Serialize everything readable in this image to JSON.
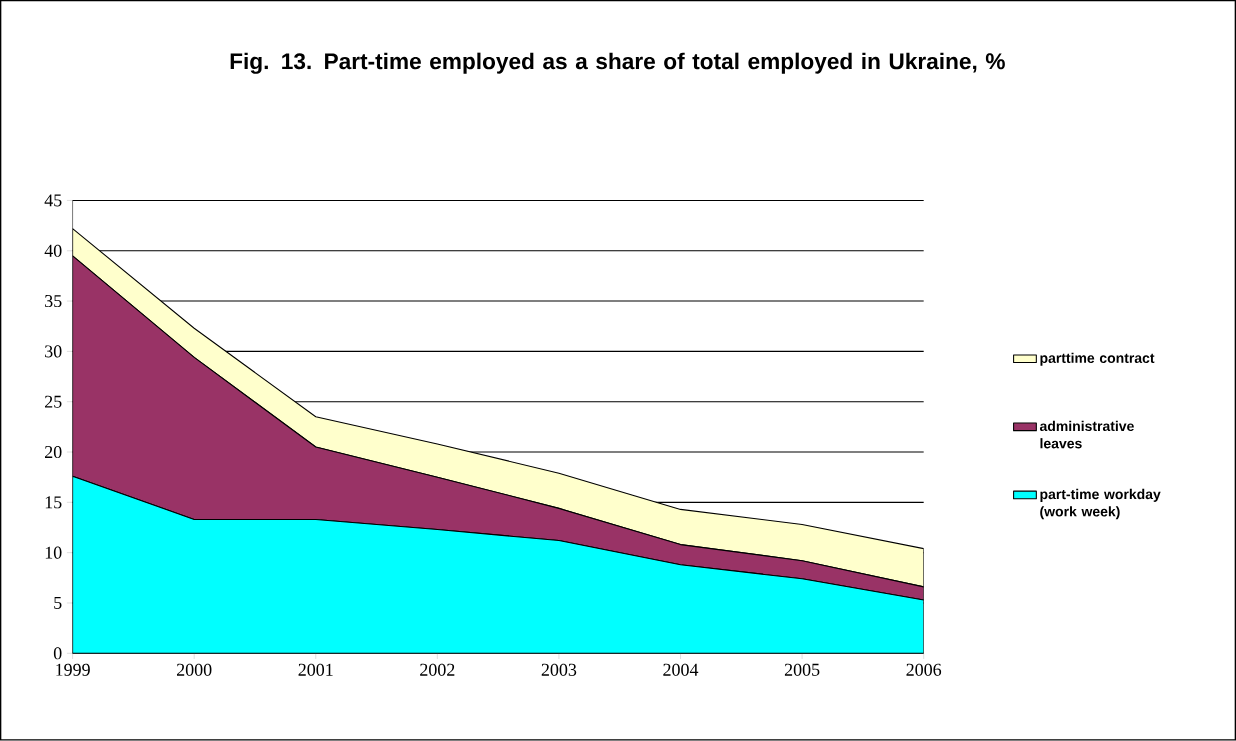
{
  "chart_data": {
    "type": "area",
    "title": "Fig. 13. Part-time employed as a share of total employed in Ukraine, %",
    "categories": [
      "1999",
      "2000",
      "2001",
      "2002",
      "2003",
      "2004",
      "2005",
      "2006"
    ],
    "stacked": true,
    "series": [
      {
        "name": "part-time workday (work week)",
        "color": "#00ffff",
        "values": [
          17.6,
          13.3,
          13.3,
          12.3,
          11.2,
          8.8,
          7.4,
          5.3
        ]
      },
      {
        "name": "administrative leaves",
        "color": "#993366",
        "values": [
          21.9,
          16.1,
          7.2,
          5.2,
          3.2,
          2.0,
          1.8,
          1.3
        ]
      },
      {
        "name": "parttime contract",
        "color": "#ffffcc",
        "values": [
          2.7,
          2.9,
          3.0,
          3.3,
          3.5,
          3.5,
          3.6,
          3.8
        ]
      }
    ],
    "ylim": [
      0,
      45
    ],
    "yticks": [
      0,
      5,
      10,
      15,
      20,
      25,
      30,
      35,
      40,
      45
    ],
    "grid": "y",
    "legend": "right"
  }
}
